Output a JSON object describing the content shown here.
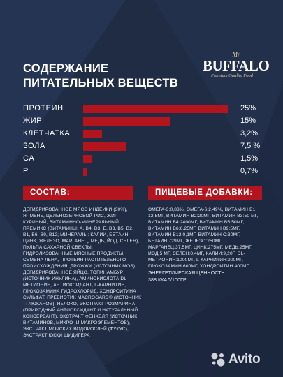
{
  "heading": {
    "line1": "СОДЕРЖАНИЕ",
    "line2": "ПИТАТЕЛЬНЫХ ВЕЩЕСТВ"
  },
  "logo": {
    "mr": "Mr",
    "name": "BUFFALO",
    "tagline": "Premium Quality Food"
  },
  "nutrients": [
    {
      "label": "ПРОТЕИН",
      "value": "25%",
      "amount": 25
    },
    {
      "label": "ЖИР",
      "value": "15%",
      "amount": 15
    },
    {
      "label": "КЛЕТЧАТКА",
      "value": "3,2%",
      "amount": 3.2
    },
    {
      "label": "ЗОЛА",
      "value": "7,5 %",
      "amount": 7.5
    },
    {
      "label": "CA",
      "value": "1,5%",
      "amount": 1.5
    },
    {
      "label": "P",
      "value": "0,7%",
      "amount": 0.7
    }
  ],
  "composition": {
    "title": "СОСТАВ:",
    "text": "ДЕГИДРИРОВАННОЕ МЯСО ИНДЕЙКИ (30%), ЯЧМЕНЬ, ЦЕЛЬНОЗЕРНОВОЙ РИС, ЖИР КУРИНЫЙ, ВИТАМИННО-МИНЕРАЛЬНЫЙ ПРЕМИКС (ВИТАМИНЫ: А, В4, D3, Е, В3, В5, В2, В1, В6, В9, В12; МИНЕРАЛЫ: КАЛИЙ, БЕТАИН, ЦИНК, ЖЕЛЕЗО, МАРГАНЕЦ, МЕДЬ, ЙОД, СЕЛЕН), ПУЛЬПА САХАРНОЙ СВЕКЛЫ, ГИДРОЛИЗОВАННЫЕ МЯСНЫЕ ПРОДУКТЫ, СЕМЕНА ЛЬНА, ПРОТЕИН РАСТИТЕЛЬНОГО ПРОИСХОЖДЕНИЯ, ДРОЖЖИ (ИСТОЧНИК MOS), ДЕГИДРИРОВАННОЕ ЯЙЦО, ТОПИНАМБУР (ИСТОЧНИК ИНУЛИНА), АМИНОКИСЛОТА DL-МЕТИОНИН, АНТИОКСИДАНТ, L-КАРНИТИН, ГЛЮКОЗАМИНА ГИДРОХЛОРИД, ХОНДРОИТИНА СУЛЬФАТ, ПРЕБИОТИК MACROGARD® (ИСТОЧНИК - ГЛЮКАНОВ), ЯБЛОКО, ЭКСТРАКТ РОЗМАРИНА (ПРИРОДНЫЙ АНТИОКСИДАНТ И НАТУРАЛЬНЫЙ КОНСЕРВАНТ), ЭКСТРАКТ ФЕНХЕЛЯ (ИСТОЧНИК ВИТАМИНОВ, МИКРО- И МАКРОЭЛЕМЕНТОВ), ЭКСТРАКТ МОРСКИХ ВОДОРОСЛЕЙ (ФУКУС), ЭКСТРАКТ ЮККИ ШИДИГЕРА"
  },
  "additives": {
    "title": "ПИЩЕВЫЕ ДОБАВКИ:",
    "text": "ОМЕГА-3:0,83%, ОМЕГА-6:2,49%, ВИТАМИН В1: 12,5МГ, ВИТАМИН В2:20МГ, ВИТАМИН В3:50 МГ, ВИТАМИН В4:2400МГ, ВИТАМИН В5:50МГ, ВИТАМИН В6:6,25МГ, ВИТАМИН В9:5МГ, ВИТАМИН В12:0,1МГ, ВИТАМИН С:30МГ, БЕТАИН:729МГ, ЖЕЛЕЗО:250МГ, МАРГАНЕЦ:37,5МГ, ЦИНК:275МГ, МЕДЬ:25МГ, ЙОД:5 МГ, СЕЛЕН:0,4МГ, КАЛИЙ:9,20Г, DL-МЕТИОНИН:1000МГ, L-КАРНИТИН:900МГ, ГЛЮКОЗАМИН:600МГ, ХОНДРОИТИН:400МГ"
  },
  "energy": {
    "label": "ЭНЕРГЕТИЧЕСКАЯ ЦЕННОСТЬ:",
    "value": "388 ККАЛ/100ГР"
  },
  "watermark": {
    "text": "Avito"
  },
  "colors": {
    "background": "#1f2c44",
    "accent": "#b3151f",
    "logo_gold": "#d8c7a4"
  }
}
